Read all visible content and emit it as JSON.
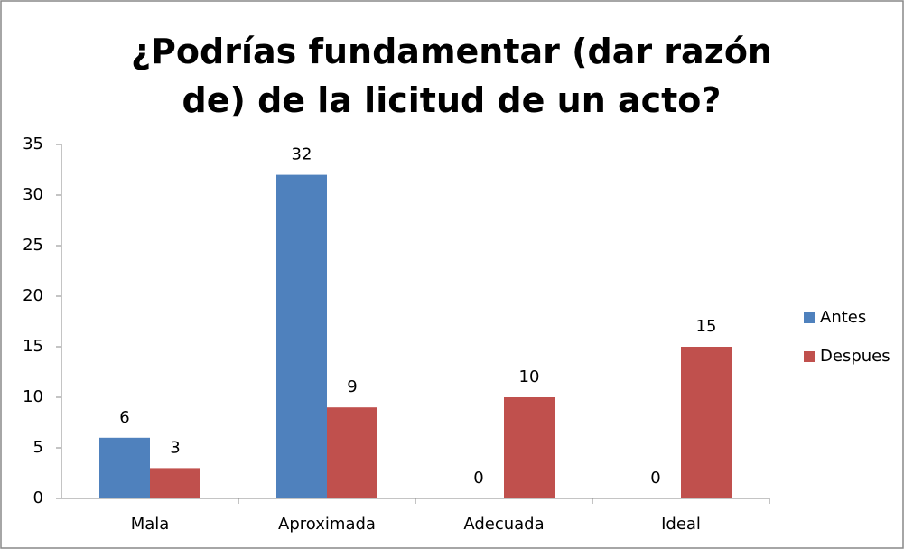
{
  "chart_data": {
    "type": "bar",
    "title": "¿Podrías fundamentar (dar razón de) de la licitud de un acto?",
    "categories": [
      "Mala",
      "Aproximada",
      "Adecuada",
      "Ideal"
    ],
    "series": [
      {
        "name": "Antes",
        "color": "#4f81bd",
        "values": [
          6,
          32,
          0,
          0
        ]
      },
      {
        "name": "Despues",
        "color": "#c0504d",
        "values": [
          3,
          9,
          10,
          15
        ]
      }
    ],
    "ylim": [
      0,
      35
    ],
    "yticks": [
      0,
      5,
      10,
      15,
      20,
      25,
      30,
      35
    ],
    "grid": false,
    "legend": "right"
  }
}
